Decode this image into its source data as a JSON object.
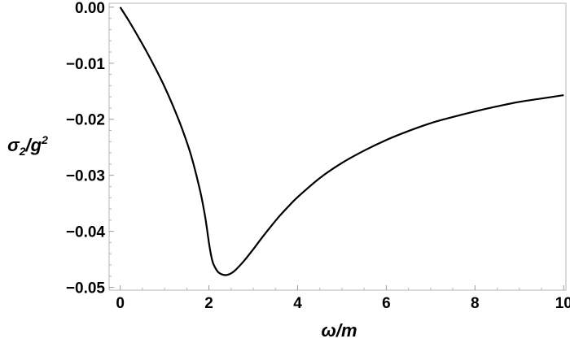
{
  "chart_data": {
    "type": "line",
    "title": "",
    "xlabel": "ω/m",
    "ylabel_parts": {
      "base": "σ",
      "sub": "2",
      "mid": "/g",
      "sup": "2"
    },
    "xlim": [
      -0.25,
      10.05
    ],
    "ylim": [
      -0.0505,
      0.0007
    ],
    "x_ticks": [
      0,
      2,
      4,
      6,
      8,
      10
    ],
    "x_tick_labels": [
      "0",
      "2",
      "4",
      "6",
      "8",
      "10"
    ],
    "y_ticks": [
      0.0,
      -0.01,
      -0.02,
      -0.03,
      -0.04,
      -0.05
    ],
    "y_tick_labels": [
      "0.00",
      "−0.01",
      "−0.02",
      "−0.03",
      "−0.04",
      "−0.05"
    ],
    "grid": false,
    "series": [
      {
        "color": "#000000",
        "x": [
          0.0,
          0.2,
          0.4,
          0.6,
          0.8,
          1.0,
          1.2,
          1.4,
          1.6,
          1.8,
          1.9,
          1.95,
          2.0,
          2.05,
          2.1,
          2.2,
          2.3,
          2.4,
          2.5,
          2.6,
          2.8,
          3.0,
          3.2,
          3.4,
          3.6,
          3.8,
          4.0,
          4.5,
          5.0,
          5.5,
          6.0,
          6.5,
          7.0,
          7.5,
          8.0,
          8.5,
          9.0,
          9.5,
          10.0
        ],
        "y": [
          0.0,
          -0.0025,
          -0.0052,
          -0.008,
          -0.011,
          -0.0142,
          -0.0178,
          -0.0218,
          -0.0265,
          -0.0327,
          -0.0367,
          -0.0392,
          -0.042,
          -0.0443,
          -0.0458,
          -0.0472,
          -0.0477,
          -0.0478,
          -0.0475,
          -0.0469,
          -0.0452,
          -0.0432,
          -0.0411,
          -0.0391,
          -0.0372,
          -0.0355,
          -0.0339,
          -0.0305,
          -0.0278,
          -0.0256,
          -0.0237,
          -0.0221,
          -0.0207,
          -0.0196,
          -0.0186,
          -0.0177,
          -0.0169,
          -0.0163,
          -0.0157
        ]
      }
    ]
  }
}
